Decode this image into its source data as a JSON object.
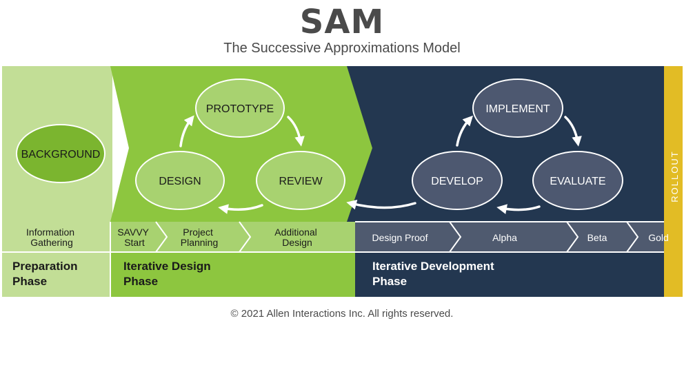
{
  "title": "SAM",
  "subtitle": "The Successive Approximations Model",
  "footer": "© 2021 Allen Interactions Inc. All rights reserved.",
  "colors": {
    "prep_light": "#c2de96",
    "design_green": "#8dc63f",
    "dev_navy": "#233750",
    "rollout_gold": "#e2bc25",
    "light_node": "#a8d270",
    "background_node": "#7bb52f",
    "dark_node": "#4d5870",
    "step_grey": "#4f5a6f"
  },
  "nodes": {
    "background": "BACKGROUND",
    "prototype": "PROTOTYPE",
    "design": "DESIGN",
    "review": "REVIEW",
    "implement": "IMPLEMENT",
    "develop": "DEVELOP",
    "evaluate": "EVALUATE"
  },
  "rollout": "ROLLOUT",
  "steps": {
    "information_gathering": [
      "Information",
      "Gathering"
    ],
    "savvy_start": [
      "SAVVY",
      "Start"
    ],
    "project_planning": [
      "Project",
      "Planning"
    ],
    "additional_design": [
      "Additional",
      "Design"
    ],
    "design_proof": "Design Proof",
    "alpha": "Alpha",
    "beta": "Beta",
    "gold": "Gold"
  },
  "phases": {
    "preparation": [
      "Preparation",
      "Phase"
    ],
    "iterative_design": [
      "Iterative Design",
      "Phase"
    ],
    "iterative_development": [
      "Iterative Development",
      "Phase"
    ]
  }
}
